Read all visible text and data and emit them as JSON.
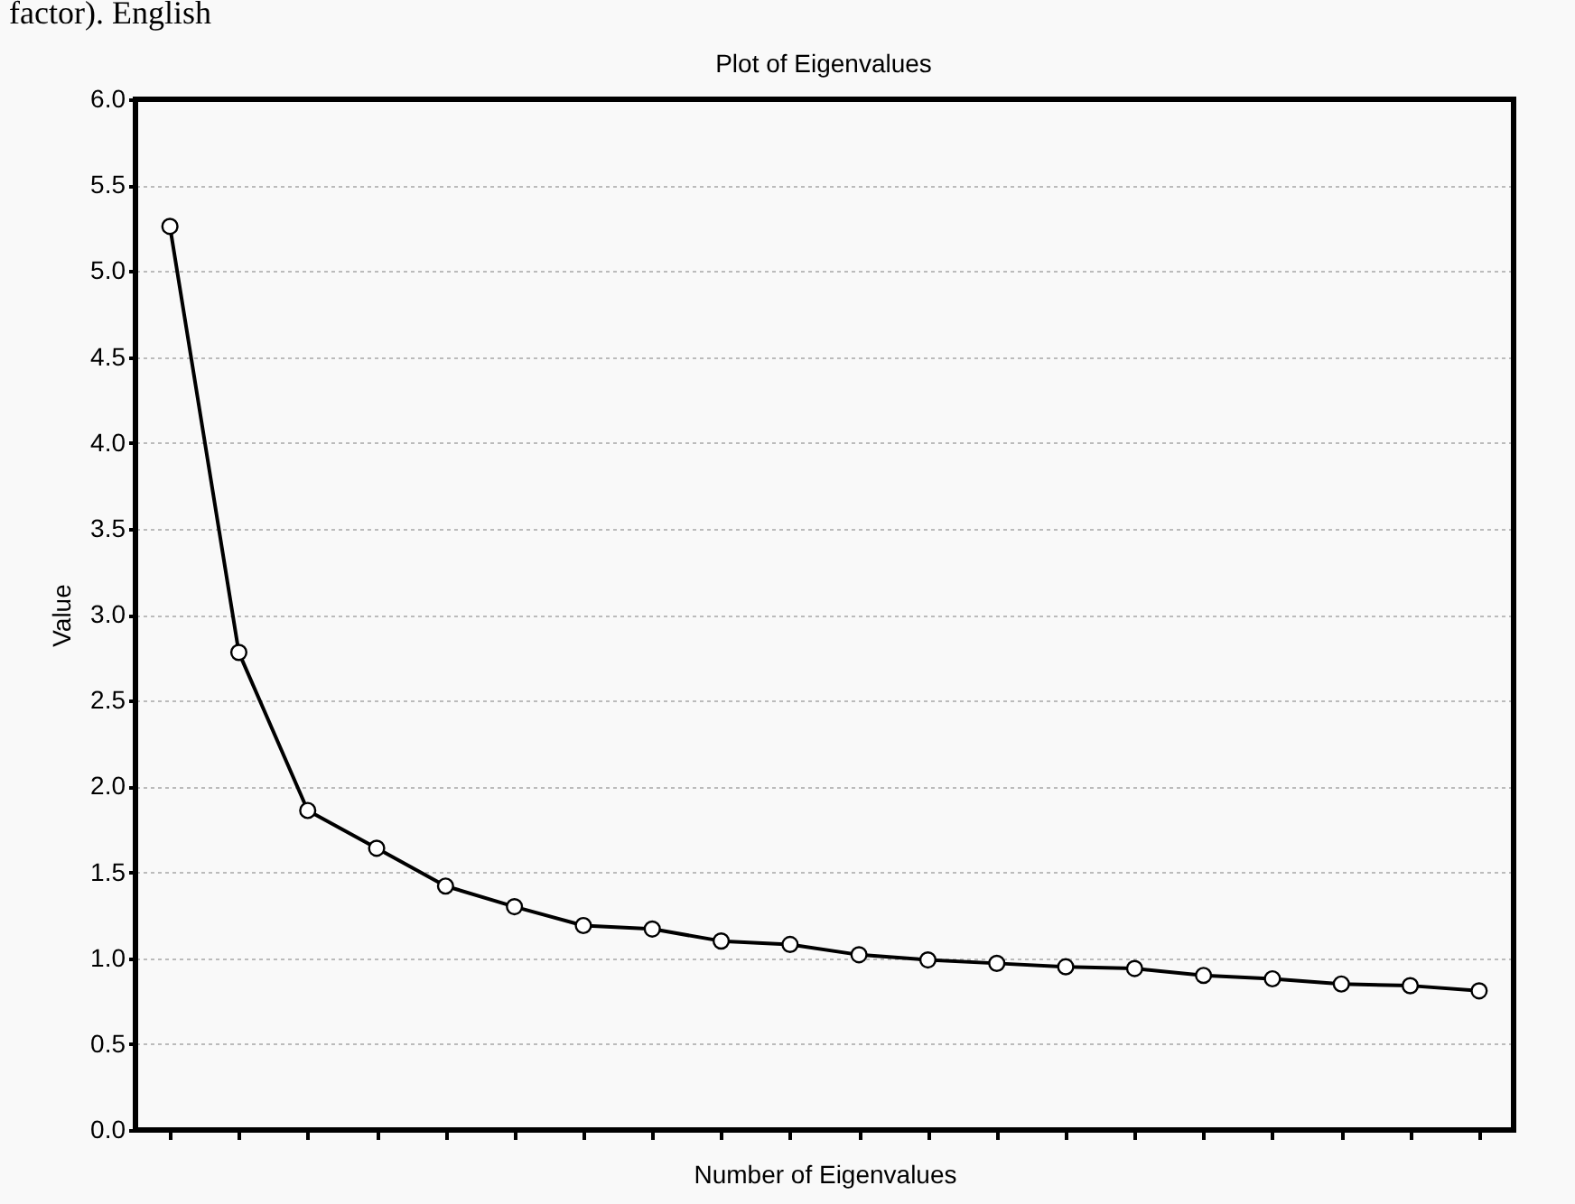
{
  "chart_data": {
    "type": "line",
    "title": "Plot of Eigenvalues",
    "xlabel": "Number of Eigenvalues",
    "ylabel": "Value",
    "annotations": [
      "factor). English"
    ],
    "categories": [
      null,
      null,
      null,
      null,
      null,
      null,
      null,
      null,
      null,
      null,
      null,
      null,
      null,
      null,
      null,
      null,
      null,
      null,
      null,
      null
    ],
    "series": [
      {
        "color": "#000000",
        "values": [
          5.26,
          2.78,
          1.86,
          1.64,
          1.42,
          1.3,
          1.19,
          1.17,
          1.1,
          1.08,
          1.02,
          0.99,
          0.97,
          0.95,
          0.94,
          0.9,
          0.88,
          0.85,
          0.84,
          0.81
        ]
      }
    ],
    "ylim": [
      0,
      6
    ],
    "yticks": [
      {
        "value": 0,
        "label": "0.0"
      },
      0.5,
      {
        "value": 1,
        "label": "1.0"
      },
      1.5,
      {
        "value": 2,
        "label": "2.0"
      },
      2.5,
      {
        "value": 3,
        "label": "3.0"
      },
      3.5,
      {
        "value": 4,
        "label": "4.0"
      },
      4.5,
      {
        "value": 5,
        "label": "5.0"
      },
      5.5,
      {
        "value": 6,
        "label": "6.0"
      }
    ],
    "grid": "y",
    "marker": "circle",
    "line_style": "solid",
    "tick_labels": "y"
  }
}
